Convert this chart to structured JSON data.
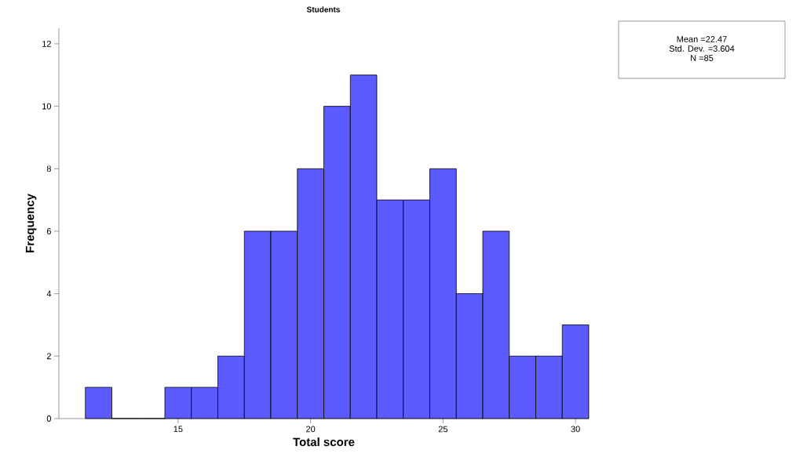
{
  "chart_data": {
    "type": "histogram",
    "title": "Students",
    "xlabel": "Total score",
    "ylabel": "Frequency",
    "bins": [
      11.5,
      12.5,
      13.5,
      14.5,
      15.5,
      16.5,
      17.5,
      18.5,
      19.5,
      20.5,
      21.5,
      22.5,
      23.5,
      24.5,
      25.5,
      26.5,
      27.5,
      28.5,
      29.5,
      30.5
    ],
    "values": [
      1,
      0,
      0,
      1,
      1,
      2,
      6,
      6,
      8,
      10,
      11,
      7,
      7,
      8,
      4,
      6,
      2,
      2,
      3
    ],
    "color": "#5b5bff",
    "xlim": [
      10.5,
      30.5
    ],
    "ylim": [
      0,
      12.5
    ],
    "xticks": [
      15,
      20,
      25,
      30
    ],
    "yticks": [
      0,
      2,
      4,
      6,
      8,
      10,
      12
    ],
    "grid": false,
    "annotations": [
      "Mean =22.47",
      "Std. Dev. =3.604",
      "N =85"
    ]
  }
}
